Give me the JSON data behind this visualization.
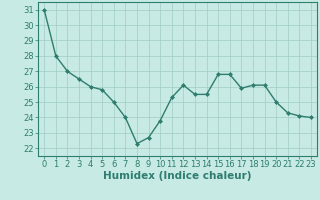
{
  "x": [
    0,
    1,
    2,
    3,
    4,
    5,
    6,
    7,
    8,
    9,
    10,
    11,
    12,
    13,
    14,
    15,
    16,
    17,
    18,
    19,
    20,
    21,
    22,
    23
  ],
  "y": [
    31,
    28,
    27,
    26.5,
    26,
    25.8,
    25,
    24,
    22.3,
    22.7,
    23.8,
    25.3,
    26.1,
    25.5,
    25.5,
    26.8,
    26.8,
    25.9,
    26.1,
    26.1,
    25,
    24.3,
    24.1,
    24.0
  ],
  "line_color": "#2e7d6e",
  "marker": "D",
  "marker_size": 2,
  "bg_color": "#c8eae4",
  "grid_color": "#a0ccc4",
  "xlabel": "Humidex (Indice chaleur)",
  "ylim": [
    21.5,
    31.5
  ],
  "xlim": [
    -0.5,
    23.5
  ],
  "yticks": [
    22,
    23,
    24,
    25,
    26,
    27,
    28,
    29,
    30,
    31
  ],
  "xticks": [
    0,
    1,
    2,
    3,
    4,
    5,
    6,
    7,
    8,
    9,
    10,
    11,
    12,
    13,
    14,
    15,
    16,
    17,
    18,
    19,
    20,
    21,
    22,
    23
  ],
  "xlabel_fontsize": 7.5,
  "tick_fontsize": 6,
  "line_width": 1.0,
  "spine_color": "#2e7d6e"
}
